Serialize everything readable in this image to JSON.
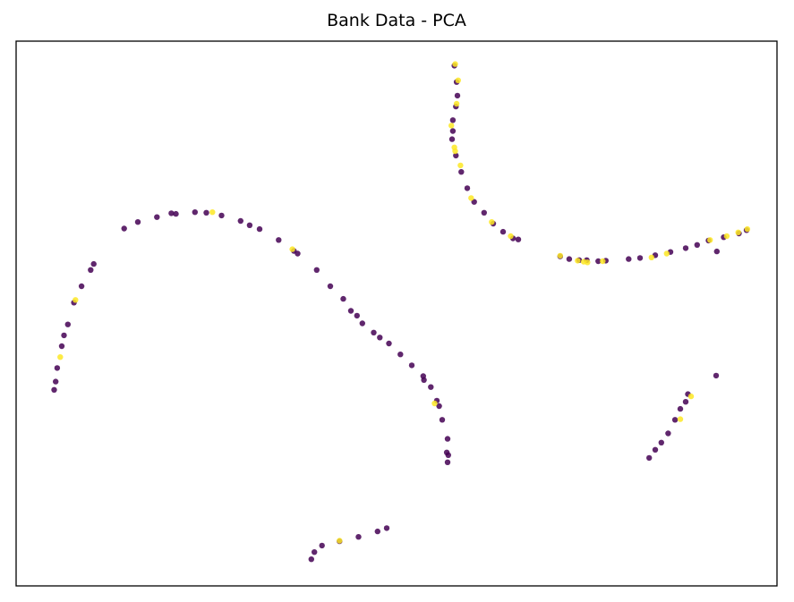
{
  "chart_data": {
    "type": "scatter",
    "title": "Bank Data - PCA",
    "xlabel": "",
    "ylabel": "",
    "xlim": [
      0,
      100
    ],
    "ylim": [
      0,
      100
    ],
    "axes_ticks": false,
    "grid": false,
    "colors": {
      "class_0": "#440154",
      "class_1": "#fde725"
    },
    "series": [
      {
        "values": [
          [
            5,
            36
          ],
          [
            5.4,
            40
          ],
          [
            6,
            44
          ],
          [
            6.8,
            48
          ],
          [
            7.6,
            52
          ],
          [
            8.6,
            55
          ],
          [
            9.8,
            58
          ],
          [
            10.2,
            59.1
          ],
          [
            5.2,
            37.5
          ],
          [
            6.3,
            46
          ],
          [
            14.2,
            65.6
          ],
          [
            16,
            66.8
          ],
          [
            18.5,
            67.7
          ],
          [
            21,
            68.3
          ],
          [
            23.5,
            68.6
          ],
          [
            25,
            68.5
          ],
          [
            27,
            68
          ],
          [
            29.5,
            67
          ],
          [
            32,
            65.5
          ],
          [
            34.5,
            63.5
          ],
          [
            37,
            61
          ],
          [
            39.5,
            58
          ],
          [
            41.3,
            55
          ],
          [
            43,
            52.7
          ],
          [
            44,
            50.5
          ],
          [
            45.5,
            48.2
          ],
          [
            47,
            46.5
          ],
          [
            49,
            44.5
          ],
          [
            50.5,
            42.5
          ],
          [
            52,
            40.5
          ],
          [
            53.5,
            38.5
          ],
          [
            54.5,
            36.5
          ],
          [
            55.3,
            34
          ],
          [
            56,
            30.5
          ],
          [
            56.7,
            27
          ],
          [
            56.8,
            24
          ],
          [
            56.7,
            22.7
          ],
          [
            20.4,
            68.4
          ],
          [
            30.7,
            66.2
          ],
          [
            36.5,
            61.5
          ],
          [
            44.8,
            49.6
          ],
          [
            47.8,
            45.6
          ],
          [
            53.6,
            37.8
          ],
          [
            55.6,
            33
          ],
          [
            56.6,
            24.5
          ],
          [
            38.8,
            4.9
          ],
          [
            39.2,
            6.2
          ],
          [
            40.2,
            7.4
          ],
          [
            42.5,
            8.2
          ],
          [
            45,
            9
          ],
          [
            47.5,
            10
          ],
          [
            48.7,
            10.6
          ],
          [
            57.6,
            95.5
          ],
          [
            57.9,
            92.5
          ],
          [
            57.8,
            88
          ],
          [
            57.4,
            85.5
          ],
          [
            57.3,
            82
          ],
          [
            57.8,
            79
          ],
          [
            58.5,
            76
          ],
          [
            59.3,
            73
          ],
          [
            60.2,
            70.5
          ],
          [
            61.5,
            68.5
          ],
          [
            62.7,
            66.5
          ],
          [
            64,
            65
          ],
          [
            65.3,
            63.8
          ],
          [
            66,
            63.6
          ],
          [
            58,
            90
          ],
          [
            57.4,
            83.5
          ],
          [
            71.5,
            60.5
          ],
          [
            72.7,
            60
          ],
          [
            74,
            59.8
          ],
          [
            75,
            59.8
          ],
          [
            76.5,
            59.6
          ],
          [
            77.5,
            59.7
          ],
          [
            80.5,
            60
          ],
          [
            82,
            60.2
          ],
          [
            84,
            60.7
          ],
          [
            86,
            61.3
          ],
          [
            88,
            62
          ],
          [
            89.5,
            62.6
          ],
          [
            91,
            63.4
          ],
          [
            93,
            64
          ],
          [
            95,
            64.7
          ],
          [
            96,
            65.3
          ],
          [
            92.1,
            61.4
          ],
          [
            92,
            38.6
          ],
          [
            83.2,
            23.5
          ],
          [
            84,
            25
          ],
          [
            84.8,
            26.3
          ],
          [
            85.7,
            28
          ],
          [
            86.6,
            30.5
          ],
          [
            87.3,
            32.5
          ],
          [
            88,
            33.8
          ],
          [
            88.3,
            35.2
          ]
        ]
      },
      {
        "values": [
          [
            5.8,
            42
          ],
          [
            7.8,
            52.5
          ],
          [
            25.8,
            68.6
          ],
          [
            36.3,
            61.8
          ],
          [
            55,
            33.5
          ],
          [
            42.5,
            8.3
          ],
          [
            57.7,
            95.8
          ],
          [
            58.1,
            92.8
          ],
          [
            57.9,
            88.5
          ],
          [
            57.2,
            84.5
          ],
          [
            57.6,
            80.5
          ],
          [
            57.7,
            79.8
          ],
          [
            58.4,
            77.2
          ],
          [
            59.8,
            71.2
          ],
          [
            62.5,
            66.8
          ],
          [
            65,
            64.2
          ],
          [
            71.5,
            60.6
          ],
          [
            73.8,
            59.7
          ],
          [
            74.6,
            59.5
          ],
          [
            75.1,
            59.4
          ],
          [
            77.1,
            59.6
          ],
          [
            83.5,
            60.3
          ],
          [
            85.5,
            61
          ],
          [
            91.2,
            63.5
          ],
          [
            93.4,
            64.2
          ],
          [
            94.9,
            64.9
          ],
          [
            96.1,
            65.5
          ],
          [
            87.3,
            30.6
          ],
          [
            88.7,
            34.8
          ]
        ]
      }
    ]
  }
}
